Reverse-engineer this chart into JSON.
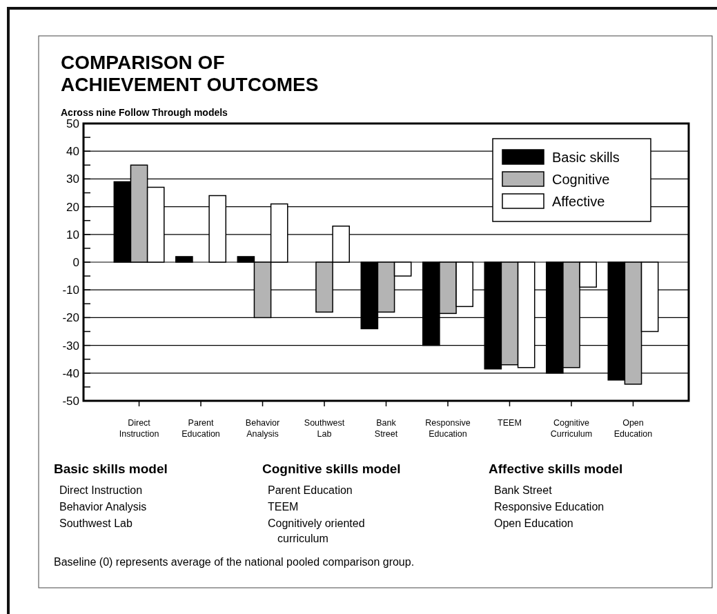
{
  "chart_data": {
    "type": "bar",
    "title": "COMPARISON OF ACHIEVEMENT OUTCOMES",
    "subtitle": "Across nine Follow Through models",
    "categories": [
      "Direct Instruction",
      "Parent Education",
      "Behavior Analysis",
      "Southwest Lab",
      "Bank Street",
      "Responsive Education",
      "TEEM",
      "Cognitive Curriculum",
      "Open Education"
    ],
    "series": [
      {
        "name": "Basic skills",
        "color": "#000000",
        "values": [
          29,
          2,
          2,
          null,
          -24,
          -30,
          -38.5,
          -40,
          -42.5
        ]
      },
      {
        "name": "Cognitive",
        "color": "#b4b4b4",
        "values": [
          35,
          null,
          -20,
          -18,
          -18,
          -18.5,
          -37,
          -38,
          -44
        ]
      },
      {
        "name": "Affective",
        "color": "#ffffff",
        "values": [
          27,
          24,
          21,
          13,
          -5,
          -16,
          -38,
          -9,
          -25
        ]
      }
    ],
    "ylim": [
      -50,
      50
    ],
    "yticks": [
      -50,
      {
        "value": -45,
        "label": null
      },
      -40,
      {
        "value": -35,
        "label": null
      },
      -30,
      {
        "value": -25,
        "label": null
      },
      -20,
      {
        "value": -15,
        "label": null
      },
      -10,
      {
        "value": -5,
        "label": null
      },
      0,
      {
        "value": 5,
        "label": null
      },
      10,
      {
        "value": 15,
        "label": null
      },
      20,
      {
        "value": 25,
        "label": null
      },
      30,
      {
        "value": 35,
        "label": null
      },
      40,
      {
        "value": 45,
        "label": null
      },
      50
    ],
    "grid": "y",
    "legend": "top right",
    "annotations": [
      "Basic skills model",
      "Direct Instruction",
      "Behavior Analysis",
      "Southwest Lab",
      "Cognitive skills model",
      "Parent Education",
      "TEEM",
      "Cognitively oriented curriculum",
      "Affective skills model",
      "Bank Street",
      "Responsive Education",
      "Open Education",
      "Baseline (0) represents average of the national pooled comparison group."
    ]
  }
}
